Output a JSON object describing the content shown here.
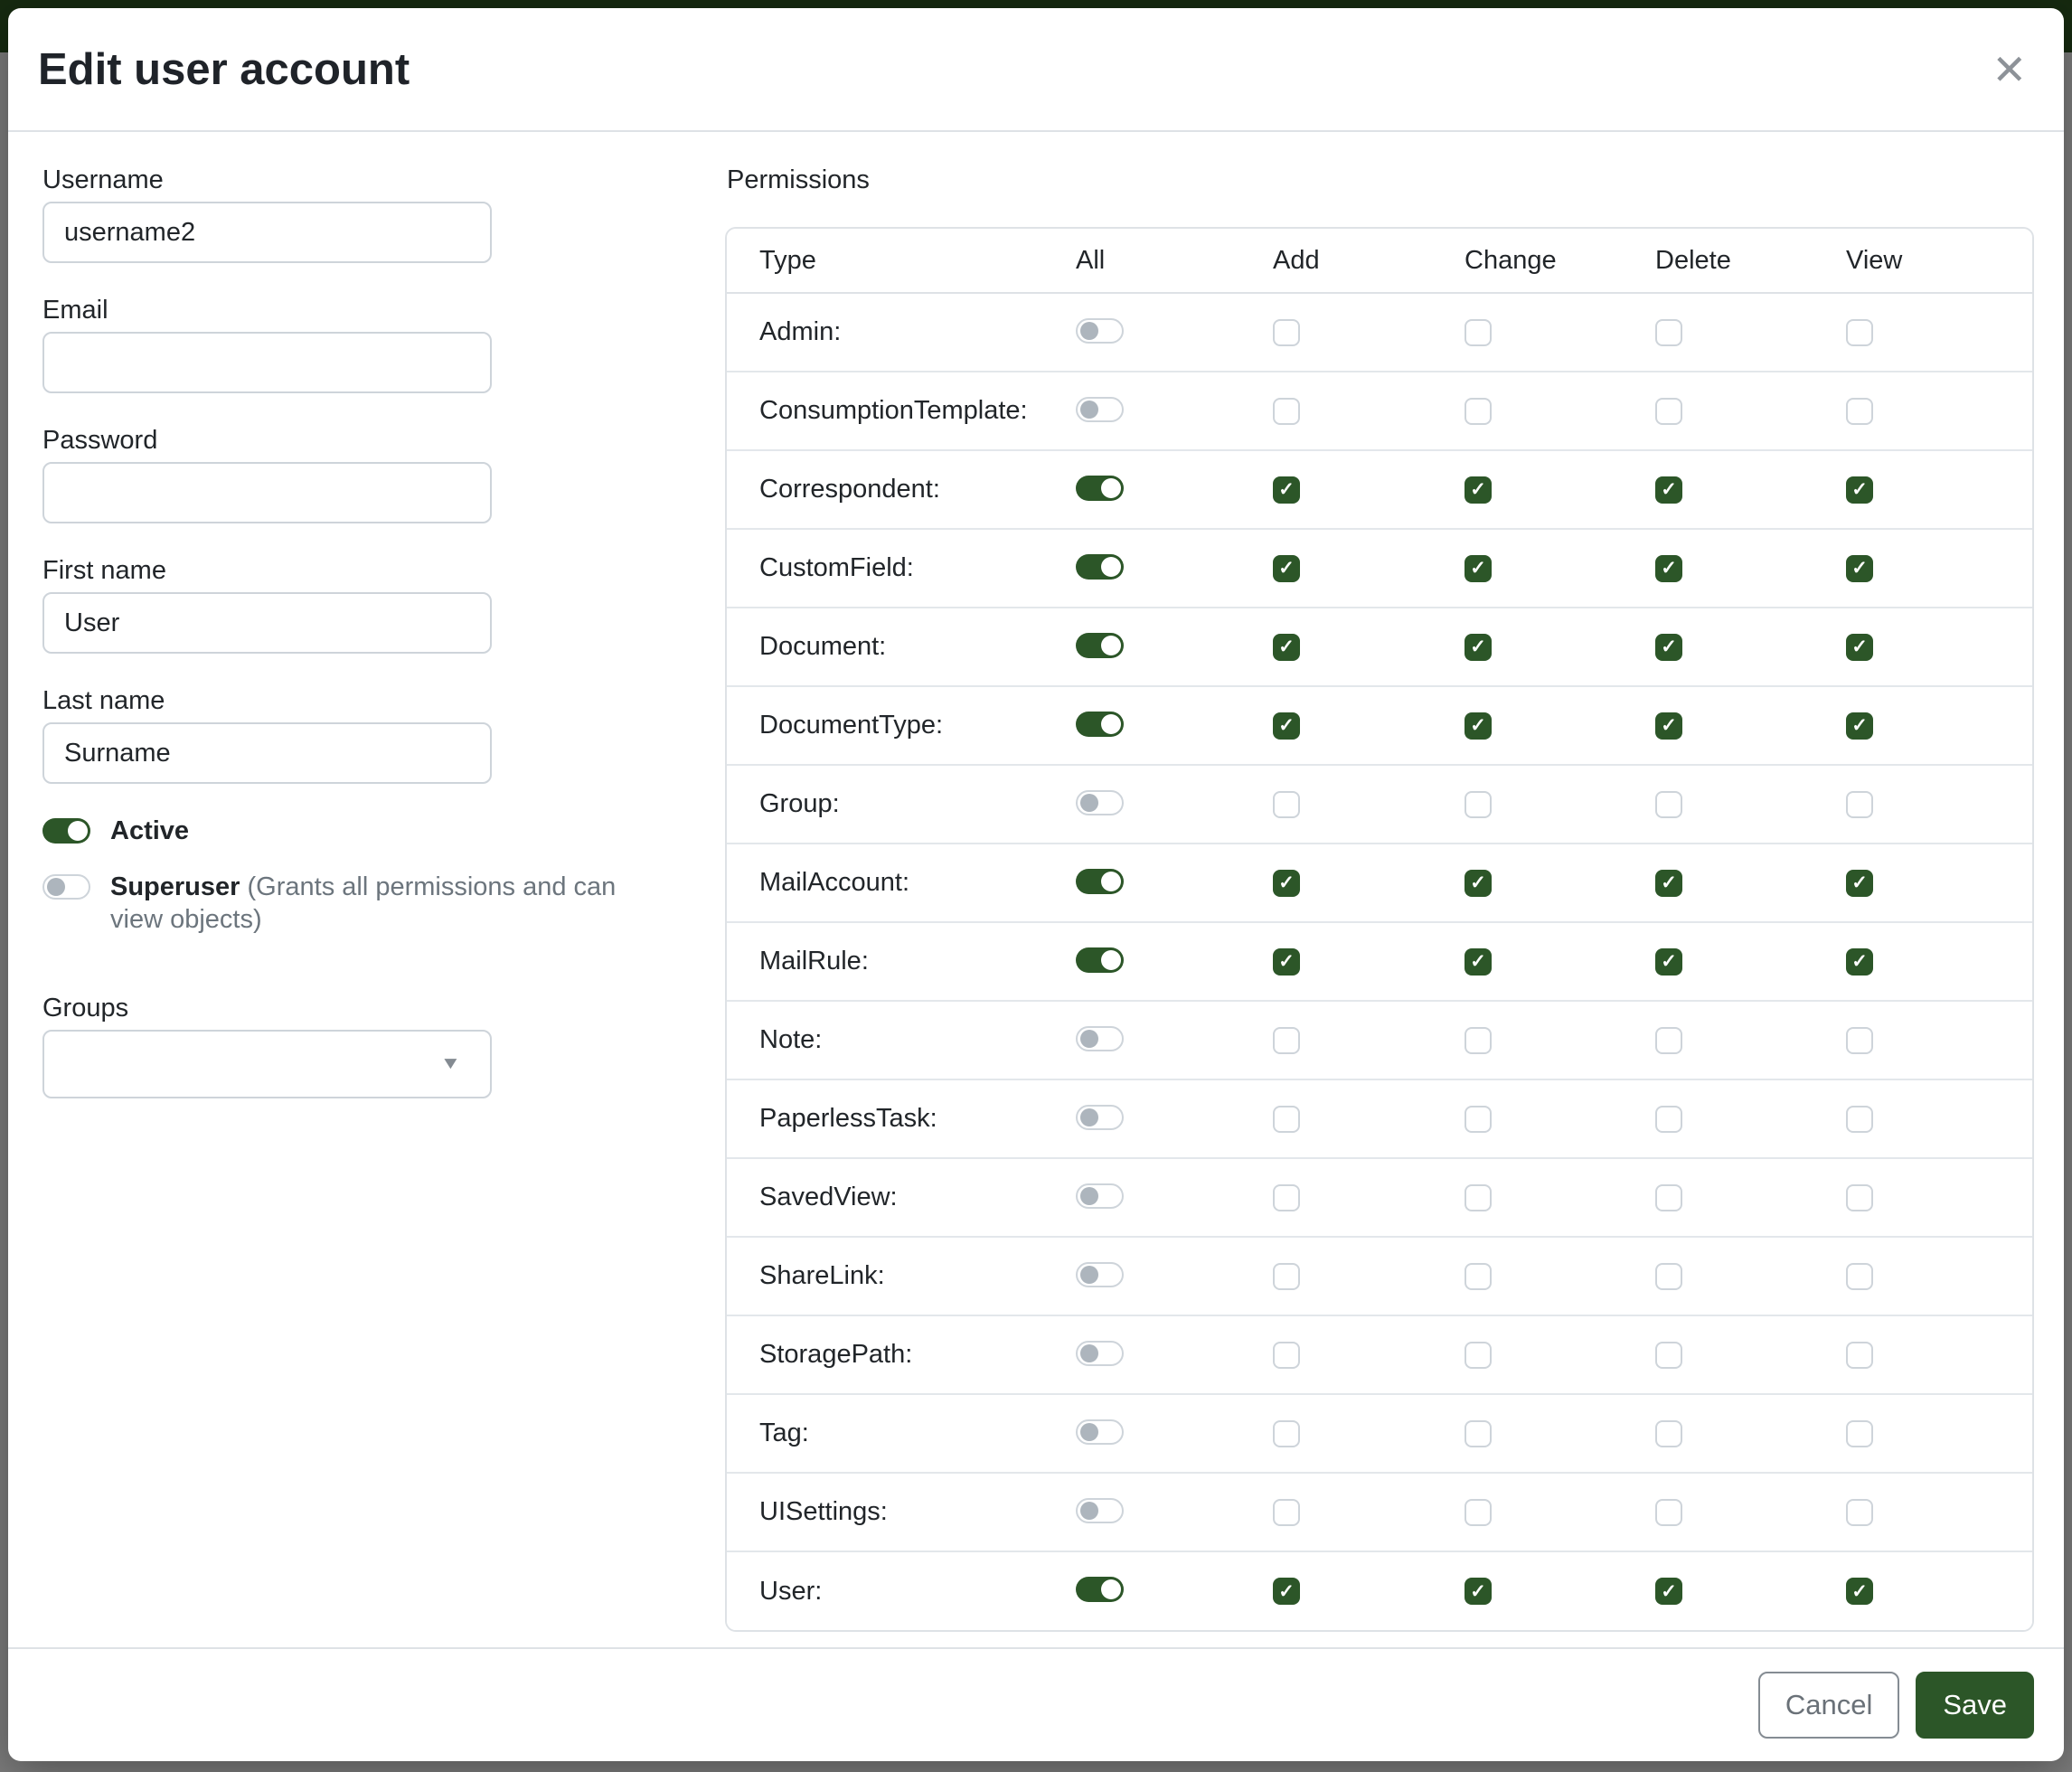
{
  "modal": {
    "title": "Edit user account"
  },
  "icons": {
    "close": "✕",
    "check": "✓",
    "caret_down": "▼"
  },
  "colors": {
    "primary_green": "#2c5628",
    "navbar_dimmed": "#162a10",
    "backdrop": "#7c7c7c"
  },
  "form": {
    "username": {
      "label": "Username",
      "value": "username2"
    },
    "email": {
      "label": "Email",
      "value": ""
    },
    "password": {
      "label": "Password",
      "value": ""
    },
    "first_name": {
      "label": "First name",
      "value": "User"
    },
    "last_name": {
      "label": "Last name",
      "value": "Surname"
    },
    "active": {
      "label": "Active",
      "on": true
    },
    "superuser": {
      "label": "Superuser",
      "hint": "(Grants all permissions and can view objects)",
      "on": false
    },
    "groups": {
      "label": "Groups",
      "value": ""
    }
  },
  "permissions": {
    "label": "Permissions",
    "columns": [
      "Type",
      "All",
      "Add",
      "Change",
      "Delete",
      "View"
    ],
    "rows": [
      {
        "type": "Admin:",
        "all": false,
        "add": false,
        "change": false,
        "delete": false,
        "view": false
      },
      {
        "type": "ConsumptionTemplate:",
        "all": false,
        "add": false,
        "change": false,
        "delete": false,
        "view": false
      },
      {
        "type": "Correspondent:",
        "all": true,
        "add": true,
        "change": true,
        "delete": true,
        "view": true
      },
      {
        "type": "CustomField:",
        "all": true,
        "add": true,
        "change": true,
        "delete": true,
        "view": true
      },
      {
        "type": "Document:",
        "all": true,
        "add": true,
        "change": true,
        "delete": true,
        "view": true
      },
      {
        "type": "DocumentType:",
        "all": true,
        "add": true,
        "change": true,
        "delete": true,
        "view": true
      },
      {
        "type": "Group:",
        "all": false,
        "add": false,
        "change": false,
        "delete": false,
        "view": false
      },
      {
        "type": "MailAccount:",
        "all": true,
        "add": true,
        "change": true,
        "delete": true,
        "view": true
      },
      {
        "type": "MailRule:",
        "all": true,
        "add": true,
        "change": true,
        "delete": true,
        "view": true
      },
      {
        "type": "Note:",
        "all": false,
        "add": false,
        "change": false,
        "delete": false,
        "view": false
      },
      {
        "type": "PaperlessTask:",
        "all": false,
        "add": false,
        "change": false,
        "delete": false,
        "view": false
      },
      {
        "type": "SavedView:",
        "all": false,
        "add": false,
        "change": false,
        "delete": false,
        "view": false
      },
      {
        "type": "ShareLink:",
        "all": false,
        "add": false,
        "change": false,
        "delete": false,
        "view": false
      },
      {
        "type": "StoragePath:",
        "all": false,
        "add": false,
        "change": false,
        "delete": false,
        "view": false
      },
      {
        "type": "Tag:",
        "all": false,
        "add": false,
        "change": false,
        "delete": false,
        "view": false
      },
      {
        "type": "UISettings:",
        "all": false,
        "add": false,
        "change": false,
        "delete": false,
        "view": false
      },
      {
        "type": "User:",
        "all": true,
        "add": true,
        "change": true,
        "delete": true,
        "view": true
      }
    ]
  },
  "footer": {
    "cancel_label": "Cancel",
    "save_label": "Save"
  }
}
